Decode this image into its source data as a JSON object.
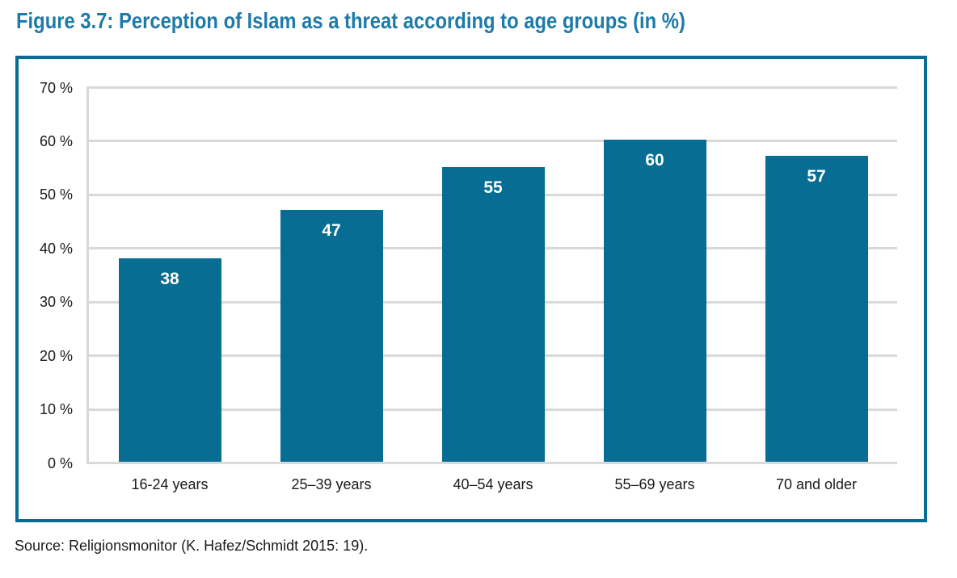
{
  "page": {
    "title": "Figure 3.7: Perception of Islam as a threat according to age groups (in %)",
    "source": "Source: Religionsmonitor (K. Hafez/Schmidt 2015: 19)."
  },
  "chart_data": {
    "type": "bar",
    "title": "Figure 3.7: Perception of Islam as a threat according to age groups (in %)",
    "categories": [
      "16-24 years",
      "25–39 years",
      "40–54 years",
      "55–69 years",
      "70 and older"
    ],
    "values": [
      38,
      47,
      55,
      60,
      57
    ],
    "value_labels": [
      "38",
      "47",
      "55",
      "60",
      "57"
    ],
    "xlabel": "",
    "ylabel": "",
    "ylim": [
      0,
      70
    ],
    "ytick_step": 10,
    "ytick_labels": [
      "0 %",
      "10 %",
      "20 %",
      "30 %",
      "40 %",
      "50 %",
      "60 %",
      "70 %"
    ],
    "grid": true,
    "legend": "none",
    "source": "Source: Religionsmonitor (K. Hafez/Schmidt 2015: 19)."
  },
  "colors": {
    "title": "#1d7aa9",
    "bar": "#086d93",
    "frame": "#086d93",
    "gridline": "#d9d9d9",
    "text": "#1a1a1a",
    "bar_value_text": "#ffffff"
  }
}
